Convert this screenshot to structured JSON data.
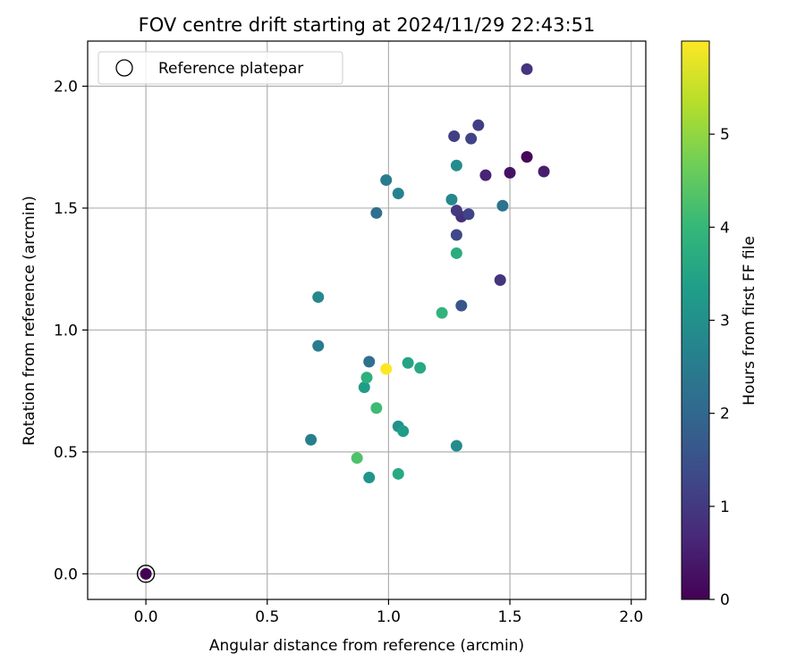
{
  "chart_data": {
    "type": "scatter",
    "title": "FOV centre drift starting at 2024/11/29 22:43:51",
    "xlabel": "Angular distance from reference (arcmin)",
    "ylabel": "Rotation from reference (arcmin)",
    "xlim": [
      -0.24,
      2.06
    ],
    "ylim": [
      -0.105,
      2.185
    ],
    "xticks": [
      0.0,
      0.5,
      1.0,
      1.5,
      2.0
    ],
    "xtick_labels": [
      "0.0",
      "0.5",
      "1.0",
      "1.5",
      "2.0"
    ],
    "yticks": [
      0.0,
      0.5,
      1.0,
      1.5,
      2.0
    ],
    "ytick_labels": [
      "0.0",
      "0.5",
      "1.0",
      "1.5",
      "2.0"
    ],
    "grid": true,
    "legend": {
      "placement": "top-left",
      "entries": [
        "Reference platepar"
      ]
    },
    "colorbar": {
      "label": "Hours from first FF file",
      "min": 0,
      "max": 6,
      "ticks": [
        0,
        1,
        2,
        3,
        4,
        5
      ],
      "tick_labels": [
        "0",
        "1",
        "2",
        "3",
        "4",
        "5"
      ],
      "colormap": "viridis"
    },
    "reference_point": {
      "x": 0.0,
      "y": 0.0,
      "hours": 0.0
    },
    "points": [
      {
        "x": 1.57,
        "y": 1.71,
        "hours": 0.1
      },
      {
        "x": 1.5,
        "y": 1.645,
        "hours": 0.3
      },
      {
        "x": 1.64,
        "y": 1.65,
        "hours": 0.5
      },
      {
        "x": 1.4,
        "y": 1.635,
        "hours": 0.6
      },
      {
        "x": 1.57,
        "y": 2.07,
        "hours": 0.9
      },
      {
        "x": 1.3,
        "y": 1.465,
        "hours": 0.8
      },
      {
        "x": 1.46,
        "y": 1.205,
        "hours": 0.9
      },
      {
        "x": 1.28,
        "y": 1.49,
        "hours": 1.0
      },
      {
        "x": 1.37,
        "y": 1.84,
        "hours": 1.1
      },
      {
        "x": 1.27,
        "y": 1.795,
        "hours": 1.1
      },
      {
        "x": 1.34,
        "y": 1.785,
        "hours": 1.2
      },
      {
        "x": 1.33,
        "y": 1.475,
        "hours": 1.2
      },
      {
        "x": 1.28,
        "y": 1.39,
        "hours": 1.3
      },
      {
        "x": 1.3,
        "y": 1.1,
        "hours": 1.6
      },
      {
        "x": 0.95,
        "y": 1.48,
        "hours": 2.2
      },
      {
        "x": 0.92,
        "y": 0.87,
        "hours": 2.2
      },
      {
        "x": 1.47,
        "y": 1.51,
        "hours": 2.3
      },
      {
        "x": 0.99,
        "y": 1.615,
        "hours": 2.5
      },
      {
        "x": 0.71,
        "y": 0.935,
        "hours": 2.5
      },
      {
        "x": 0.68,
        "y": 0.55,
        "hours": 2.6
      },
      {
        "x": 1.04,
        "y": 1.56,
        "hours": 2.7
      },
      {
        "x": 0.71,
        "y": 1.135,
        "hours": 2.8
      },
      {
        "x": 1.26,
        "y": 1.535,
        "hours": 2.8
      },
      {
        "x": 1.28,
        "y": 1.675,
        "hours": 2.9
      },
      {
        "x": 1.28,
        "y": 0.525,
        "hours": 2.9
      },
      {
        "x": 1.04,
        "y": 0.605,
        "hours": 3.0
      },
      {
        "x": 0.92,
        "y": 0.395,
        "hours": 3.1
      },
      {
        "x": 0.9,
        "y": 0.765,
        "hours": 3.3
      },
      {
        "x": 1.06,
        "y": 0.585,
        "hours": 3.3
      },
      {
        "x": 1.08,
        "y": 0.865,
        "hours": 3.5
      },
      {
        "x": 1.13,
        "y": 0.845,
        "hours": 3.6
      },
      {
        "x": 1.04,
        "y": 0.41,
        "hours": 3.6
      },
      {
        "x": 1.28,
        "y": 1.315,
        "hours": 3.7
      },
      {
        "x": 0.91,
        "y": 0.805,
        "hours": 3.8
      },
      {
        "x": 1.22,
        "y": 1.07,
        "hours": 3.9
      },
      {
        "x": 0.95,
        "y": 0.68,
        "hours": 4.1
      },
      {
        "x": 0.87,
        "y": 0.475,
        "hours": 4.3
      },
      {
        "x": 0.99,
        "y": 0.84,
        "hours": 6.0
      }
    ]
  }
}
